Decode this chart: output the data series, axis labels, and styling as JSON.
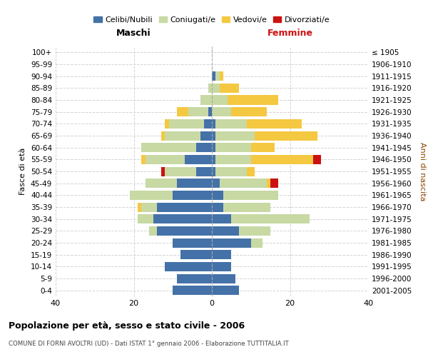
{
  "age_groups": [
    "0-4",
    "5-9",
    "10-14",
    "15-19",
    "20-24",
    "25-29",
    "30-34",
    "35-39",
    "40-44",
    "45-49",
    "50-54",
    "55-59",
    "60-64",
    "65-69",
    "70-74",
    "75-79",
    "80-84",
    "85-89",
    "90-94",
    "95-99",
    "100+"
  ],
  "birth_years": [
    "2001-2005",
    "1996-2000",
    "1991-1995",
    "1986-1990",
    "1981-1985",
    "1976-1980",
    "1971-1975",
    "1966-1970",
    "1961-1965",
    "1956-1960",
    "1951-1955",
    "1946-1950",
    "1941-1945",
    "1936-1940",
    "1931-1935",
    "1926-1930",
    "1921-1925",
    "1916-1920",
    "1911-1915",
    "1906-1910",
    "≤ 1905"
  ],
  "males": {
    "celibi": [
      10,
      9,
      12,
      8,
      10,
      14,
      15,
      14,
      10,
      9,
      4,
      7,
      4,
      3,
      2,
      1,
      0,
      0,
      0,
      0,
      0
    ],
    "coniugati": [
      0,
      0,
      0,
      0,
      0,
      2,
      4,
      4,
      11,
      8,
      8,
      10,
      14,
      9,
      9,
      5,
      3,
      1,
      0,
      0,
      0
    ],
    "vedovi": [
      0,
      0,
      0,
      0,
      0,
      0,
      0,
      1,
      0,
      0,
      0,
      1,
      0,
      1,
      1,
      3,
      0,
      0,
      0,
      0,
      0
    ],
    "divorziati": [
      0,
      0,
      0,
      0,
      0,
      0,
      0,
      0,
      0,
      0,
      1,
      0,
      0,
      0,
      0,
      0,
      0,
      0,
      0,
      0,
      0
    ]
  },
  "females": {
    "nubili": [
      7,
      6,
      5,
      5,
      10,
      7,
      5,
      3,
      3,
      2,
      1,
      1,
      1,
      1,
      1,
      0,
      0,
      0,
      1,
      0,
      0
    ],
    "coniugate": [
      0,
      0,
      0,
      0,
      3,
      8,
      20,
      12,
      14,
      12,
      8,
      9,
      9,
      10,
      8,
      5,
      4,
      2,
      1,
      0,
      0
    ],
    "vedove": [
      0,
      0,
      0,
      0,
      0,
      0,
      0,
      0,
      0,
      1,
      2,
      16,
      6,
      16,
      14,
      9,
      13,
      5,
      1,
      0,
      0
    ],
    "divorziate": [
      0,
      0,
      0,
      0,
      0,
      0,
      0,
      0,
      0,
      2,
      0,
      2,
      0,
      0,
      0,
      0,
      0,
      0,
      0,
      0,
      0
    ]
  },
  "colors": {
    "celibi_nubili": "#4472a8",
    "coniugati": "#c8d9a4",
    "vedovi": "#f5c842",
    "divorziati": "#cc1111"
  },
  "xlim": 40,
  "title": "Popolazione per età, sesso e stato civile - 2006",
  "subtitle": "COMUNE DI FORNI AVOLTRI (UD) - Dati ISTAT 1° gennaio 2006 - Elaborazione TUTTITALIA.IT",
  "ylabel_left": "Fasce di età",
  "ylabel_right": "Anni di nascita",
  "legend_labels": [
    "Celibi/Nubili",
    "Coniugati/e",
    "Vedovi/e",
    "Divorziati/e"
  ],
  "header_maschi": "Maschi",
  "header_femmine": "Femmine"
}
